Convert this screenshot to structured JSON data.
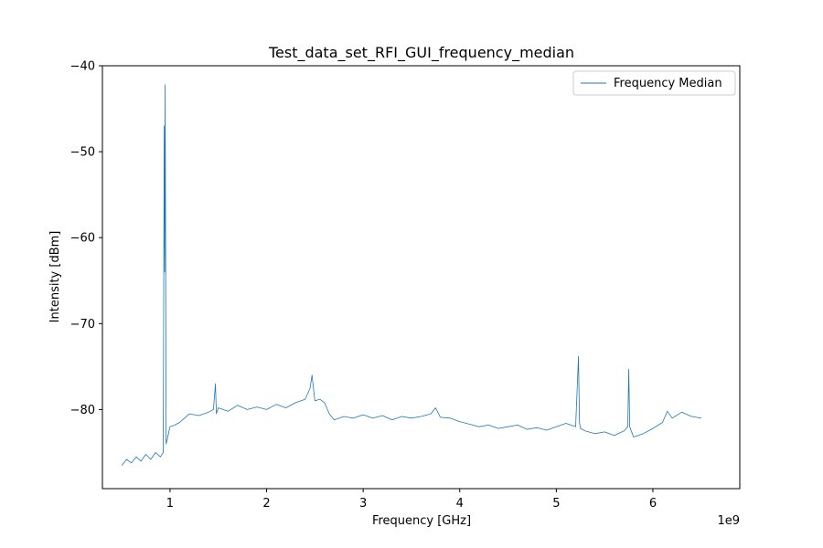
{
  "chart_data": {
    "type": "line",
    "title": "Test_data_set_RFI_GUI_frequency_median",
    "xlabel": "Frequency [GHz]",
    "ylabel": "Intensity [dBm]",
    "x_offset_label": "1e9",
    "xlim": [
      0.3,
      6.9
    ],
    "ylim": [
      -89.2,
      -40
    ],
    "xticks": [
      1,
      2,
      3,
      4,
      5,
      6
    ],
    "xtick_labels": [
      "1",
      "2",
      "3",
      "4",
      "5",
      "6"
    ],
    "yticks": [
      -40,
      -50,
      -60,
      -70,
      -80
    ],
    "ytick_labels": [
      "−40",
      "−50",
      "−60",
      "−70",
      "−80"
    ],
    "legend_position": "top-right",
    "grid": false,
    "series": [
      {
        "name": "Frequency Median",
        "color": "#1f77b4",
        "x": [
          0.5,
          0.55,
          0.6,
          0.65,
          0.7,
          0.75,
          0.8,
          0.85,
          0.9,
          0.93,
          0.94,
          0.945,
          0.95,
          0.955,
          0.96,
          0.97,
          1.0,
          1.05,
          1.1,
          1.15,
          1.2,
          1.3,
          1.4,
          1.45,
          1.47,
          1.48,
          1.5,
          1.6,
          1.7,
          1.8,
          1.9,
          2.0,
          2.1,
          2.2,
          2.3,
          2.4,
          2.45,
          2.47,
          2.5,
          2.55,
          2.6,
          2.65,
          2.7,
          2.8,
          2.9,
          3.0,
          3.1,
          3.2,
          3.3,
          3.4,
          3.5,
          3.6,
          3.7,
          3.75,
          3.8,
          3.9,
          4.0,
          4.1,
          4.2,
          4.3,
          4.4,
          4.5,
          4.6,
          4.7,
          4.8,
          4.9,
          5.0,
          5.1,
          5.2,
          5.23,
          5.24,
          5.25,
          5.3,
          5.4,
          5.5,
          5.6,
          5.7,
          5.74,
          5.75,
          5.76,
          5.8,
          5.9,
          6.0,
          6.1,
          6.15,
          6.2,
          6.3,
          6.4,
          6.5
        ],
        "values": [
          -86.5,
          -85.8,
          -86.2,
          -85.5,
          -86.0,
          -85.2,
          -85.8,
          -85.0,
          -85.5,
          -85.0,
          -47.0,
          -64.0,
          -42.2,
          -63.0,
          -84.0,
          -83.5,
          -82.0,
          -81.8,
          -81.5,
          -81.0,
          -80.5,
          -80.7,
          -80.3,
          -80.0,
          -77.0,
          -80.5,
          -79.8,
          -80.2,
          -79.5,
          -80.0,
          -79.7,
          -80.0,
          -79.4,
          -79.8,
          -79.2,
          -78.8,
          -77.5,
          -76.0,
          -79.0,
          -78.8,
          -79.2,
          -80.5,
          -81.2,
          -80.8,
          -81.0,
          -80.6,
          -81.0,
          -80.7,
          -81.2,
          -80.8,
          -81.0,
          -80.8,
          -80.5,
          -79.8,
          -80.9,
          -81.0,
          -81.4,
          -81.7,
          -82.0,
          -81.8,
          -82.2,
          -82.0,
          -81.8,
          -82.3,
          -82.1,
          -82.4,
          -82.0,
          -81.6,
          -82.0,
          -73.8,
          -81.5,
          -82.2,
          -82.5,
          -82.8,
          -82.6,
          -83.0,
          -82.5,
          -82.0,
          -75.3,
          -82.0,
          -83.2,
          -82.8,
          -82.2,
          -81.5,
          -80.2,
          -81.0,
          -80.3,
          -80.8,
          -81.0
        ]
      }
    ]
  }
}
